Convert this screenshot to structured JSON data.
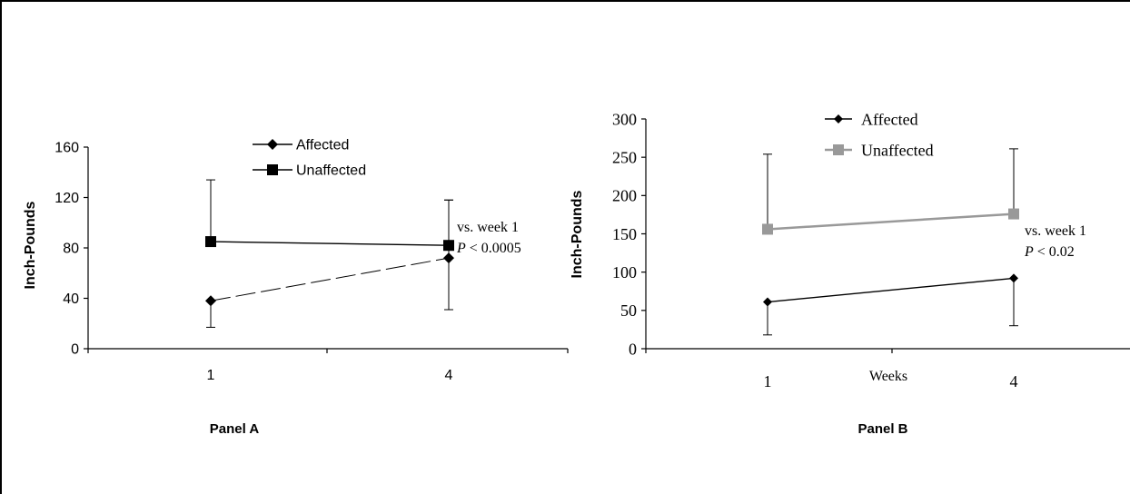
{
  "chart_data": [
    {
      "type": "line",
      "panel_label": "Panel A",
      "xlabel": "",
      "ylabel": "Inch-Pounds",
      "categories": [
        "1",
        "4"
      ],
      "ylim": [
        0,
        160
      ],
      "yticks": [
        "0",
        "40",
        "80",
        "120",
        "160"
      ],
      "series": [
        {
          "name": "Affected",
          "values": [
            38,
            72
          ],
          "error_low": [
            21,
            41
          ],
          "error_high": [
            0,
            46
          ],
          "color": "#000000",
          "line_style": "dashed",
          "marker": "diamond"
        },
        {
          "name": "Unaffected",
          "values": [
            85,
            82
          ],
          "error_low": [
            0,
            0
          ],
          "error_high": [
            49,
            36
          ],
          "color": "#000000",
          "line_style": "solid",
          "marker": "square"
        }
      ],
      "annotation": {
        "line1": "vs. week 1",
        "p_symbol": "P",
        "p_text": " < 0.0005"
      },
      "legend_position": "top-center",
      "grid": false
    },
    {
      "type": "line",
      "panel_label": "Panel B",
      "xlabel": "Weeks",
      "ylabel": "Inch-Pounds",
      "categories": [
        "1",
        "4"
      ],
      "ylim": [
        0,
        300
      ],
      "yticks": [
        "0",
        "50",
        "100",
        "150",
        "200",
        "250",
        "300"
      ],
      "series": [
        {
          "name": "Affected",
          "values": [
            61,
            92
          ],
          "error_low": [
            43,
            62
          ],
          "error_high": [
            0,
            0
          ],
          "color": "#000000",
          "line_style": "solid",
          "marker": "diamond"
        },
        {
          "name": "Unaffected",
          "values": [
            156,
            176
          ],
          "error_low": [
            0,
            0
          ],
          "error_high": [
            98,
            85
          ],
          "color": "#999999",
          "line_style": "solid",
          "marker": "square"
        }
      ],
      "annotation": {
        "line1": "vs. week 1",
        "p_symbol": "P",
        "p_text": " < 0.02"
      },
      "legend_position": "top-center",
      "grid": false
    }
  ]
}
